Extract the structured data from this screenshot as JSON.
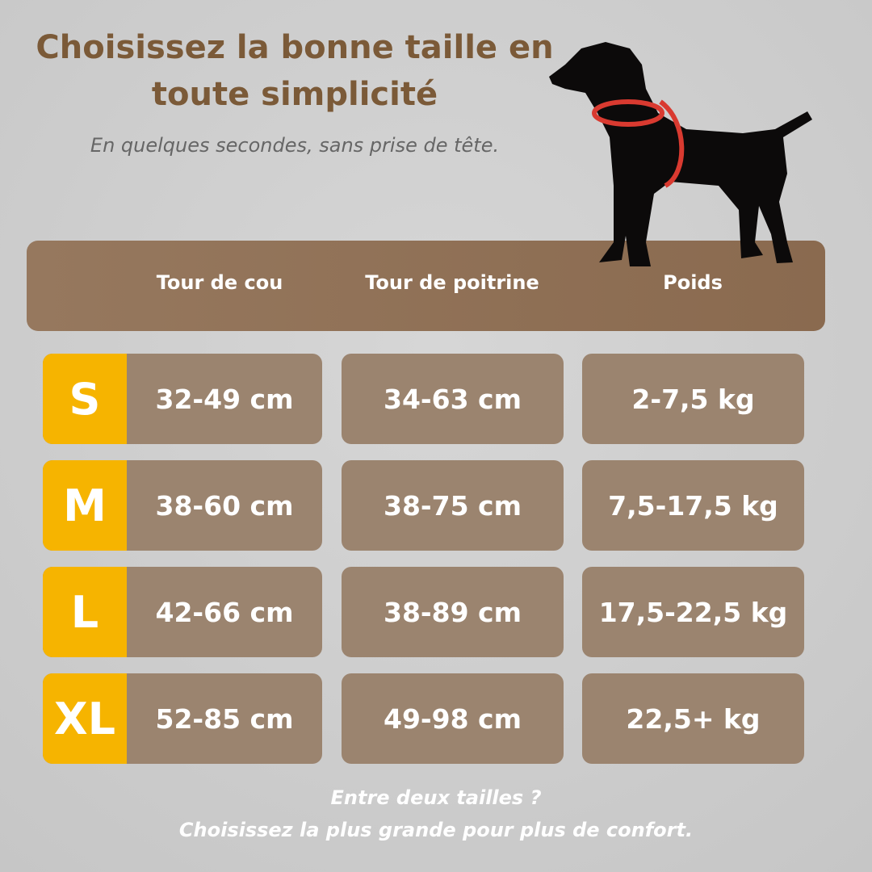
{
  "header": {
    "title": "Choisissez la bonne taille en toute simplicité",
    "subtitle": "En quelques secondes, sans prise de tête."
  },
  "table": {
    "columns": [
      "Tour de cou",
      "Tour de poitrine",
      "Poids"
    ],
    "rows": [
      [
        "S",
        "32-49 cm",
        "34-63 cm",
        "2-7,5 kg"
      ],
      [
        "M",
        "38-60 cm",
        "38-75 cm",
        "7,5-17,5 kg"
      ],
      [
        "L",
        "42-66 cm",
        "38-89 cm",
        "17,5-22,5 kg"
      ],
      [
        "XL",
        "52-85 cm",
        "49-98 cm",
        "22,5+ kg"
      ]
    ]
  },
  "footer": {
    "lines": [
      "Entre deux tailles ?",
      "Choisissez la plus grande pour plus de confort."
    ]
  }
}
